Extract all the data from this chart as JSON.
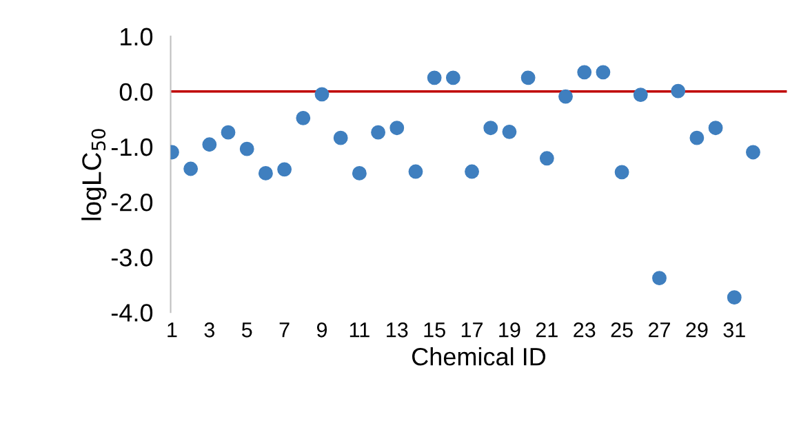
{
  "chart_data": {
    "type": "scatter",
    "xlabel": "Chemical ID",
    "ylabel": "logLC$_{50}$",
    "categories": [
      "1",
      null,
      "3",
      null,
      "5",
      null,
      "7",
      null,
      "9",
      null,
      "11",
      null,
      "13",
      null,
      "15",
      null,
      "17",
      null,
      "19",
      null,
      "21",
      null,
      "23",
      null,
      "25",
      null,
      "27",
      null,
      "29",
      null,
      "31",
      null
    ],
    "series": [
      {
        "color": "#3f7fbf",
        "values": [
          -1.1,
          -1.4,
          -0.96,
          -0.74,
          -1.04,
          -1.48,
          -1.41,
          -0.48,
          -0.05,
          -0.84,
          -1.48,
          -0.74,
          -0.66,
          -1.45,
          0.25,
          0.25,
          -1.45,
          -0.66,
          -0.73,
          0.25,
          -1.21,
          -0.09,
          0.35,
          0.35,
          -1.46,
          -0.06,
          -3.38,
          0.01,
          -0.84,
          -0.66,
          -3.73,
          -1.1
        ]
      }
    ],
    "ylim": [
      -4.0,
      1.0
    ],
    "yticks": [
      {
        "value": -4,
        "label": "-4.0"
      },
      {
        "value": -3,
        "label": "-3.0"
      },
      {
        "value": -2,
        "label": "-2.0"
      },
      {
        "value": -1,
        "label": "-1.0"
      },
      {
        "value": 0,
        "label": "0.0"
      },
      {
        "value": 1,
        "label": "1.0"
      }
    ],
    "ref_lines": [
      {
        "axis": "y",
        "value": 0,
        "label": null,
        "color": "#c00000"
      }
    ],
    "marker": "circle",
    "grid": false,
    "legend": false
  }
}
